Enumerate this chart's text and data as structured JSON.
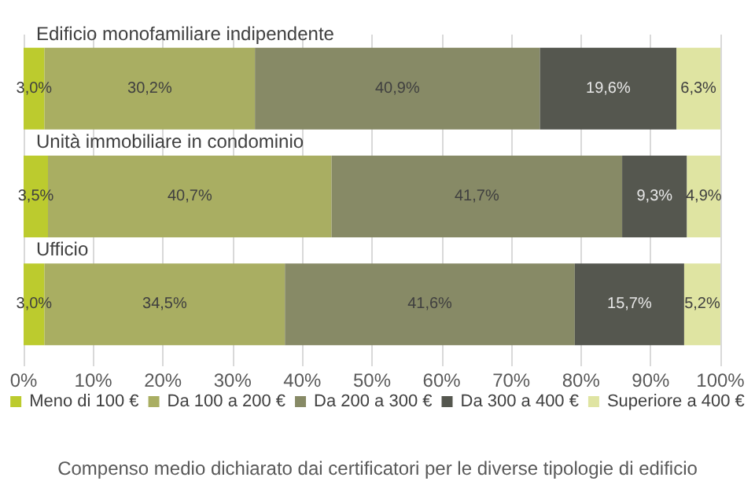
{
  "chart_data": {
    "type": "bar",
    "orientation": "horizontal",
    "stacked": true,
    "categories": [
      "Edificio monofamiliare indipendente",
      "Unità immobiliare in condominio",
      "Ufficio"
    ],
    "series": [
      {
        "name": "Meno di 100 €",
        "color": "#bccb2e",
        "values": [
          3.0,
          3.5,
          3.0
        ],
        "value_labels": [
          "3,0%",
          "3,5%",
          "3,0%"
        ]
      },
      {
        "name": "Da 100 a 200 €",
        "color": "#a9ae62",
        "values": [
          30.2,
          40.7,
          34.5
        ],
        "value_labels": [
          "30,2%",
          "40,7%",
          "34,5%"
        ]
      },
      {
        "name": "Da 200 a 300 €",
        "color": "#878a66",
        "values": [
          40.9,
          41.7,
          41.6
        ],
        "value_labels": [
          "40,9%",
          "41,7%",
          "41,6%"
        ]
      },
      {
        "name": "Da 300 a 400 €",
        "color": "#55574f",
        "values": [
          19.6,
          9.3,
          15.7
        ],
        "value_labels": [
          "19,6%",
          "9,3%",
          "15,7%"
        ]
      },
      {
        "name": "Superiore a 400 €",
        "color": "#dfe4a2",
        "values": [
          6.3,
          4.9,
          5.2
        ],
        "value_labels": [
          "6,3%",
          "4,9%",
          "5,2%"
        ]
      }
    ],
    "xlim": [
      0,
      100
    ],
    "xticks": [
      {
        "value": 0,
        "label": "0%"
      },
      {
        "value": 10,
        "label": "10%"
      },
      {
        "value": 20,
        "label": "20%"
      },
      {
        "value": 30,
        "label": "30%"
      },
      {
        "value": 40,
        "label": "40%"
      },
      {
        "value": 50,
        "label": "50%"
      },
      {
        "value": 60,
        "label": "60%"
      },
      {
        "value": 70,
        "label": "70%"
      },
      {
        "value": 80,
        "label": "80%"
      },
      {
        "value": 90,
        "label": "90%"
      },
      {
        "value": 100,
        "label": "100%"
      }
    ],
    "grid": "x",
    "legend": "bottom",
    "annotations": [
      "Compenso medio dichiarato dai certificatori per le diverse tipologie di edificio"
    ]
  }
}
